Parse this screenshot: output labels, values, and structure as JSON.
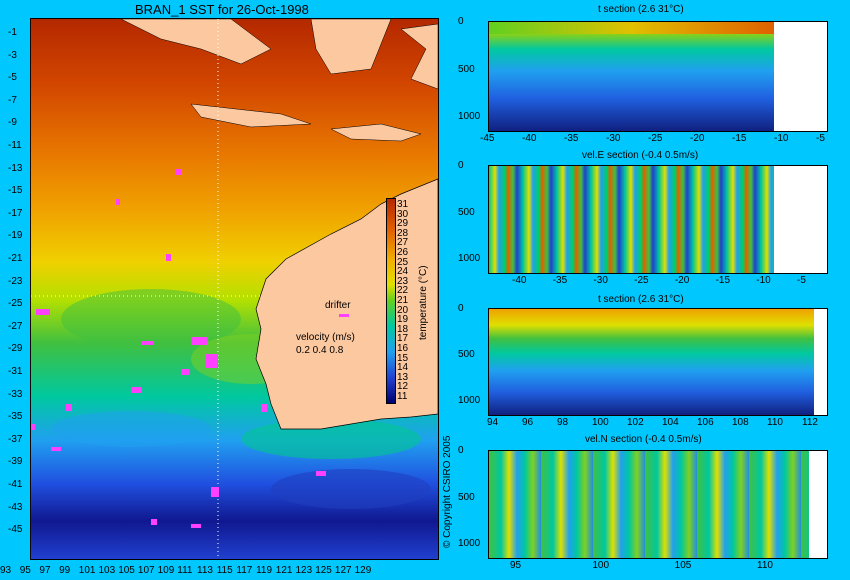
{
  "map": {
    "title": "BRAN_1 SST for 26-Oct-1998",
    "lat_ticks": [
      "-1",
      "-3",
      "-5",
      "-7",
      "-9",
      "-11",
      "-13",
      "-15",
      "-17",
      "-19",
      "-21",
      "-23",
      "-25",
      "-27",
      "-29",
      "-31",
      "-33",
      "-35",
      "-37",
      "-39",
      "-41",
      "-43",
      "-45"
    ],
    "lon_ticks": [
      "93",
      "95",
      "97",
      "99",
      "101",
      "103",
      "105",
      "107",
      "109",
      "111",
      "113",
      "115",
      "117",
      "119",
      "121",
      "123",
      "125",
      "127",
      "129"
    ],
    "colorbar_ticks": [
      "31",
      "30",
      "29",
      "28",
      "27",
      "26",
      "25",
      "24",
      "23",
      "22",
      "21",
      "20",
      "19",
      "18",
      "17",
      "16",
      "15",
      "14",
      "13",
      "12",
      "11"
    ],
    "colorbar_label": "temperature (°C)",
    "drifter_label": "drifter",
    "velocity_label": "velocity (m/s)",
    "velocity_values": "0.2 0.4 0.8",
    "copyright": "© Copyright CSIRO 2005"
  },
  "sections": [
    {
      "title": "t section (2.6      31°C)",
      "y_ticks": [
        "0",
        "500",
        "1000"
      ],
      "x_ticks": [
        "-45",
        "-40",
        "-35",
        "-30",
        "-25",
        "-20",
        "-15",
        "-10",
        "-5"
      ]
    },
    {
      "title": "vel.E section (-0.4      0.5m/s)",
      "y_ticks": [
        "0",
        "500",
        "1000"
      ],
      "x_ticks": [
        "-40",
        "-35",
        "-30",
        "-25",
        "-20",
        "-15",
        "-10",
        "-5"
      ]
    },
    {
      "title": "t section (2.6      31°C)",
      "y_ticks": [
        "0",
        "500",
        "1000"
      ],
      "x_ticks": [
        "94",
        "96",
        "98",
        "100",
        "102",
        "104",
        "106",
        "108",
        "110",
        "112"
      ]
    },
    {
      "title": "vel.N section (-0.4      0.5m/s)",
      "y_ticks": [
        "0",
        "500",
        "1000"
      ],
      "x_ticks": [
        "95",
        "100",
        "105",
        "110"
      ]
    }
  ],
  "colors": {
    "background": "#00c8ff",
    "land": "#fcc8a0",
    "warm": "#c83200",
    "cold": "#000080"
  }
}
